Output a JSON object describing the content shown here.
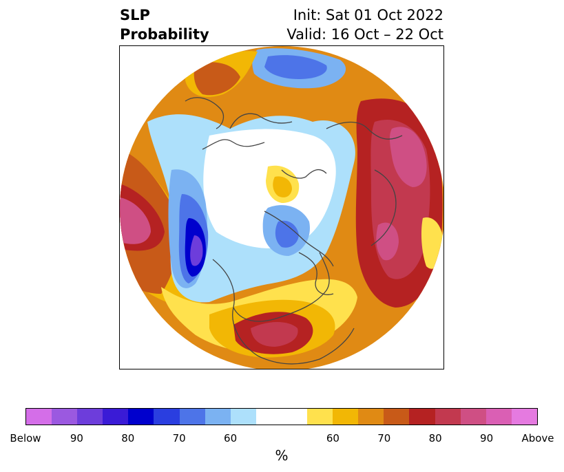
{
  "title": {
    "left_line1": "SLP",
    "left_line2": "Probability",
    "right_line1": "Init: Sat 01 Oct 2022",
    "right_line2": "Valid: 16 Oct – 22 Oct"
  },
  "colorbar": {
    "colors": [
      "#d46ee8",
      "#9b59e0",
      "#6d3ddb",
      "#3a1bd6",
      "#0000cd",
      "#2a3ee0",
      "#4d74e8",
      "#7bb2f2",
      "#ade0fb",
      "#ffffff",
      "#ffffff",
      "#ffe14d",
      "#f2b705",
      "#e08a14",
      "#c85a18",
      "#b52222",
      "#c2394f",
      "#cf4f84",
      "#da5fb4",
      "#e57ae0"
    ],
    "ticks": [
      "Below",
      "90",
      "80",
      "70",
      "60",
      "60",
      "70",
      "80",
      "90",
      "Above"
    ],
    "unit": "%"
  },
  "map": {
    "palette": {
      "below_60": "#ade0fb",
      "below_70": "#7bb2f2",
      "below_80": "#4d74e8",
      "below_90": "#0000cd",
      "below_max": "#6d3ddb",
      "above_60": "#ffe14d",
      "above_70": "#f2b705",
      "above_75": "#e08a14",
      "above_80": "#c85a18",
      "above_85": "#b52222",
      "above_90": "#c2394f",
      "above_max": "#cf4f84",
      "coast": "#444444"
    }
  }
}
